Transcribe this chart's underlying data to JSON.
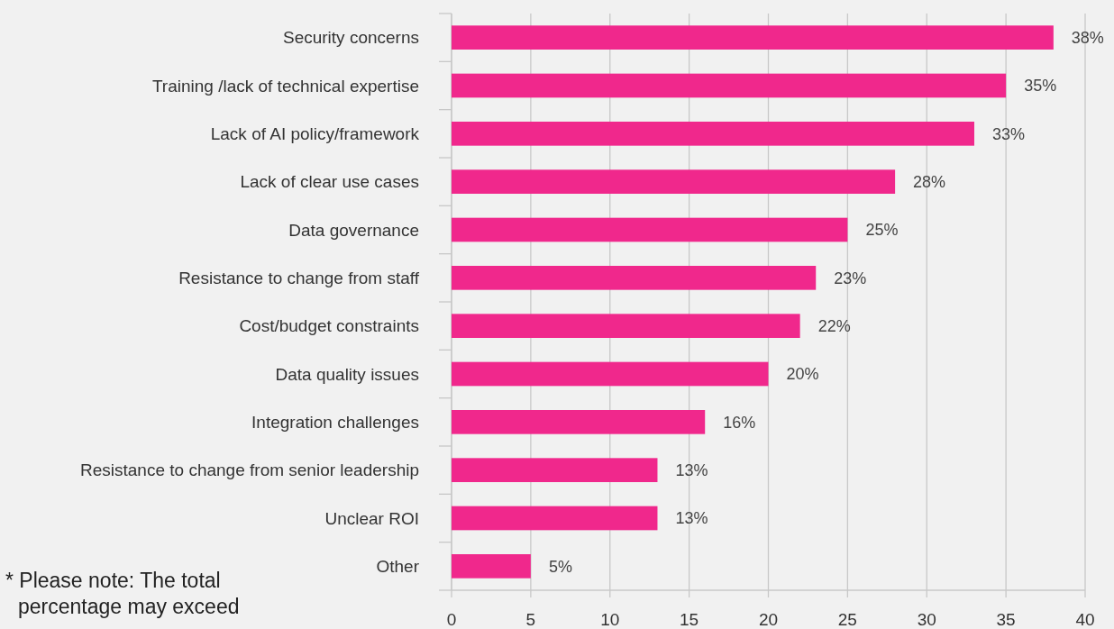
{
  "chart_data": {
    "type": "bar",
    "orientation": "horizontal",
    "categories": [
      "Security concerns",
      "Training /lack of technical expertise",
      "Lack of AI policy/framework",
      "Lack of clear use cases",
      "Data governance",
      "Resistance to change from staff",
      "Cost/budget constraints",
      "Data quality issues",
      "Integration challenges",
      "Resistance to change from senior leadership",
      "Unclear ROI",
      "Other"
    ],
    "values": [
      38,
      35,
      33,
      28,
      25,
      23,
      22,
      20,
      16,
      13,
      13,
      5
    ],
    "value_labels": [
      "38%",
      "35%",
      "33%",
      "28%",
      "25%",
      "23%",
      "22%",
      "20%",
      "16%",
      "13%",
      "13%",
      "5%"
    ],
    "color": "#f0288c",
    "xlim": [
      0,
      40
    ],
    "xticks": [
      0,
      5,
      10,
      15,
      20,
      25,
      30,
      35,
      40
    ],
    "grid": "x",
    "annotations": [
      "* Please note: The total percentage may exceed"
    ]
  }
}
